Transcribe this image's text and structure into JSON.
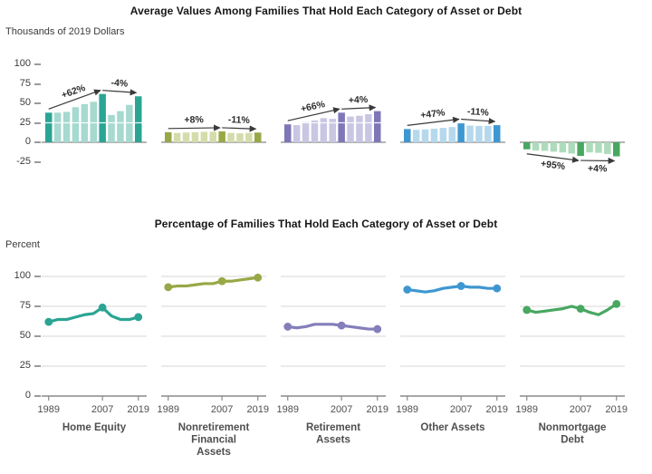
{
  "chart_data": [
    {
      "type": "bar",
      "title": "Average Values Among Families That Hold Each Category of Asset or Debt",
      "ylabel": "Thousands of 2019 Dollars",
      "ylim": [
        -25,
        100
      ],
      "yticks": [
        100,
        75,
        50,
        25,
        0,
        -25
      ],
      "grid": "white-line-at-25-through-bars",
      "x": [
        1989,
        1992,
        1995,
        1998,
        2001,
        2004,
        2007,
        2010,
        2013,
        2016,
        2019
      ],
      "highlight_years": [
        1989,
        2007,
        2019
      ],
      "series": [
        {
          "name": "Home Equity",
          "values": [
            38,
            38,
            39,
            45,
            49,
            52,
            62,
            35,
            40,
            48,
            59
          ],
          "color_dark": "#2BA493",
          "color_light": "#A6D9CF",
          "annotations": [
            {
              "from": 1989,
              "to": 2007,
              "label": "+62%"
            },
            {
              "from": 2007,
              "to": 2019,
              "label": "-4%"
            }
          ]
        },
        {
          "name": "Nonretirement Financial Assets",
          "values": [
            13,
            12,
            12.5,
            13,
            13.5,
            13.5,
            14,
            12,
            11.5,
            12,
            12.5
          ],
          "color_dark": "#98A846",
          "color_light": "#D5DCAB",
          "annotations": [
            {
              "from": 1989,
              "to": 2007,
              "label": "+8%"
            },
            {
              "from": 2007,
              "to": 2019,
              "label": "-11%"
            }
          ]
        },
        {
          "name": "Retirement Assets",
          "values": [
            23,
            22,
            26,
            28,
            31,
            30,
            38,
            33,
            34,
            36,
            40
          ],
          "color_dark": "#7D77B7",
          "color_light": "#C9C6E3",
          "annotations": [
            {
              "from": 1989,
              "to": 2007,
              "label": "+66%"
            },
            {
              "from": 2007,
              "to": 2019,
              "label": "+4%"
            }
          ]
        },
        {
          "name": "Other Assets",
          "values": [
            17,
            16,
            16.5,
            17.5,
            18.5,
            19.5,
            25,
            21.5,
            21,
            21,
            22
          ],
          "color_dark": "#3E97D1",
          "color_light": "#B6D8EC",
          "annotations": [
            {
              "from": 1989,
              "to": 2007,
              "label": "+47%"
            },
            {
              "from": 2007,
              "to": 2019,
              "label": "-11%"
            }
          ]
        },
        {
          "name": "Nonmortgage Debt",
          "values": [
            -9,
            -10.5,
            -11,
            -12,
            -13,
            -14.5,
            -17.5,
            -13,
            -13.5,
            -15,
            -18
          ],
          "color_dark": "#48A761",
          "color_light": "#AEDBBB",
          "annotations": [
            {
              "from": 1989,
              "to": 2007,
              "label": "+95%"
            },
            {
              "from": 2007,
              "to": 2019,
              "label": "+4%"
            }
          ]
        }
      ]
    },
    {
      "type": "line",
      "title": "Percentage of Families That Hold Each Category of Asset or Debt",
      "ylabel": "Percent",
      "ylim": [
        0,
        100
      ],
      "yticks": [
        100,
        75,
        50,
        25,
        0
      ],
      "grid": "horizontal-light-gray",
      "x": [
        1989,
        1992,
        1995,
        1998,
        2001,
        2004,
        2007,
        2010,
        2013,
        2016,
        2019
      ],
      "marker_years": [
        1989,
        2007,
        2019
      ],
      "x_tick_labels": [
        "1989",
        "2007",
        "2019"
      ],
      "series": [
        {
          "name": "Home Equity",
          "label_lines": [
            "Home Equity"
          ],
          "values": [
            62,
            64,
            64,
            66,
            68,
            69,
            74,
            67,
            64,
            64,
            66
          ],
          "color": "#2BA493"
        },
        {
          "name": "Nonretirement Financial Assets",
          "label_lines": [
            "Nonretirement",
            "Financial",
            "Assets"
          ],
          "values": [
            91,
            92,
            92,
            93,
            94,
            94,
            96,
            96,
            97,
            98,
            99
          ],
          "color": "#98A846"
        },
        {
          "name": "Retirement Assets",
          "label_lines": [
            "Retirement",
            "Assets"
          ],
          "values": [
            58,
            57,
            58,
            60,
            60,
            60,
            59,
            58,
            57,
            56,
            56
          ],
          "color": "#847EBB"
        },
        {
          "name": "Other Assets",
          "label_lines": [
            "Other Assets"
          ],
          "values": [
            89,
            88,
            87,
            88,
            90,
            91,
            92,
            91,
            91,
            90,
            90
          ],
          "color": "#3E97D1"
        },
        {
          "name": "Nonmortgage Debt",
          "label_lines": [
            "Nonmortgage",
            "Debt"
          ],
          "values": [
            72,
            70,
            71,
            72,
            73,
            75,
            73,
            70,
            68,
            72,
            77
          ],
          "color": "#48A761"
        }
      ]
    }
  ]
}
